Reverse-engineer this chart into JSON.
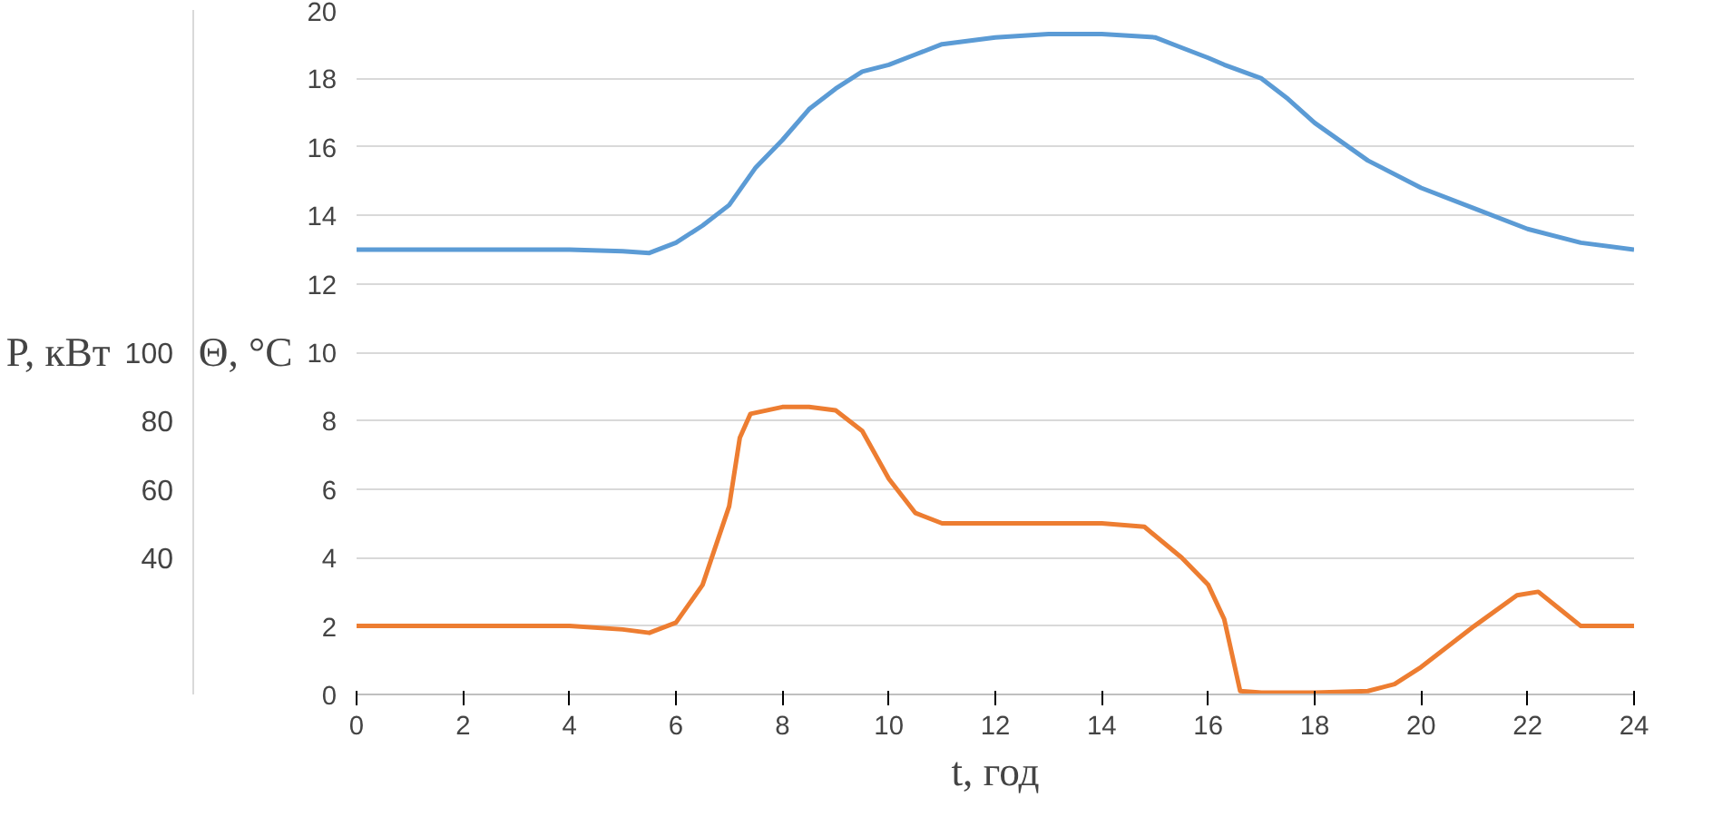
{
  "chart_data": {
    "type": "line",
    "xlabel": "t, год",
    "ylabel": "Θ, °C",
    "y2label": "P, кВт",
    "xlim": [
      0,
      24
    ],
    "xticks": [
      0,
      2,
      4,
      6,
      8,
      10,
      12,
      14,
      16,
      18,
      20,
      22,
      24
    ],
    "ylim": [
      0,
      20
    ],
    "yticks": [
      0,
      2,
      4,
      6,
      8,
      10,
      12,
      14,
      16,
      18,
      20
    ],
    "y2lim": [
      0,
      200
    ],
    "y2ticks": [
      40,
      60,
      80,
      100
    ],
    "grid": "y",
    "series": [
      {
        "color": "#5b9bd5",
        "x": [
          0,
          2,
          4,
          5,
          5.5,
          6,
          6.5,
          7,
          7.5,
          8,
          8.5,
          9,
          9.5,
          10,
          10.5,
          11,
          12,
          13,
          14,
          15,
          15.5,
          16,
          16.3,
          17,
          17.5,
          18,
          19,
          20,
          21,
          22,
          23,
          24
        ],
        "values": [
          13,
          13,
          13,
          12.95,
          12.9,
          13.2,
          13.7,
          14.3,
          15.4,
          16.2,
          17.1,
          17.7,
          18.2,
          18.4,
          18.7,
          19.0,
          19.2,
          19.3,
          19.3,
          19.2,
          18.9,
          18.6,
          18.4,
          18.0,
          17.4,
          16.7,
          15.6,
          14.8,
          14.2,
          13.6,
          13.2,
          13.0
        ]
      },
      {
        "color": "#ed7d31",
        "axis": "y2",
        "x": [
          0,
          2,
          4,
          5,
          5.5,
          6,
          6.5,
          7,
          7.2,
          7.4,
          8,
          8.5,
          9,
          9.5,
          10,
          10.5,
          11,
          12,
          13,
          14,
          14.8,
          15.5,
          16,
          16.3,
          16.6,
          17,
          18,
          19,
          19.5,
          20,
          21,
          21.8,
          22.2,
          22.6,
          23,
          24
        ],
        "values": [
          20,
          20,
          20,
          19,
          18,
          21,
          32,
          55,
          75,
          82,
          84,
          84,
          83,
          77,
          63,
          53,
          50,
          50,
          50,
          50,
          49,
          40,
          32,
          22,
          1,
          0.5,
          0.5,
          1,
          3,
          8,
          20,
          29,
          30,
          25,
          20,
          20
        ]
      }
    ]
  }
}
